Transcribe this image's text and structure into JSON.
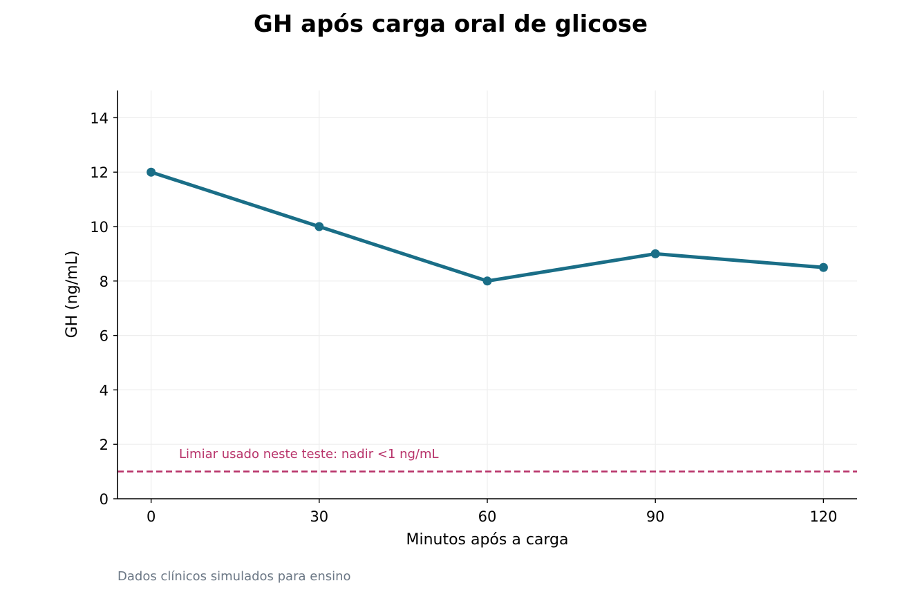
{
  "chart_data": {
    "type": "line",
    "title": "GH após carga oral de glicose",
    "xlabel": "Minutos após a carga",
    "ylabel": "GH (ng/mL)",
    "x": [
      0,
      30,
      60,
      90,
      120
    ],
    "series": [
      {
        "values": [
          12,
          10,
          8,
          9,
          8.5
        ]
      }
    ],
    "xticks": [
      0,
      30,
      60,
      90,
      120
    ],
    "yticks": [
      0,
      2,
      4,
      6,
      8,
      10,
      12,
      14
    ],
    "xlim": [
      -6,
      126
    ],
    "ylim": [
      0,
      15
    ],
    "grid": true,
    "threshold": {
      "y": 1,
      "style": "dashed",
      "label": "Limiar usado neste teste: nadir <1 ng/mL"
    },
    "footnote": "Dados clínicos simulados para ensino"
  },
  "colors": {
    "series": "#1a6e87",
    "threshold": "#b8336a",
    "footnote": "#6b7785",
    "grid": "#eeeeee",
    "axis": "#000000"
  }
}
